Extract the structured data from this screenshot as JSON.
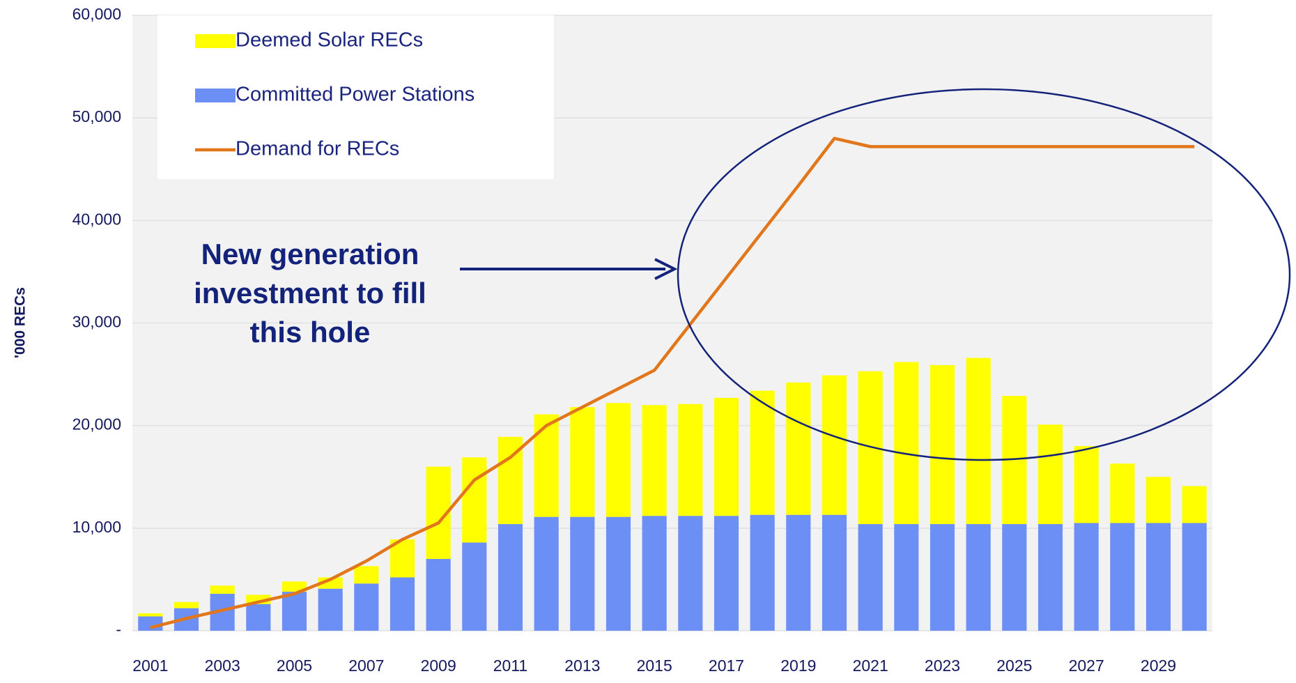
{
  "chart_data": {
    "type": "bar",
    "y_label": "'000 RECs",
    "categories": [
      "2001",
      null,
      "2003",
      null,
      "2005",
      null,
      "2007",
      null,
      "2009",
      null,
      "2011",
      null,
      "2013",
      null,
      "2015",
      null,
      "2017",
      null,
      "2019",
      null,
      "2021",
      null,
      "2023",
      null,
      "2025",
      null,
      "2027",
      null,
      "2029",
      null
    ],
    "series": [
      {
        "name": "Deemed Solar RECs",
        "type": "bar",
        "color": "#ffff00",
        "values": [
          300,
          600,
          800,
          900,
          1000,
          1100,
          1700,
          3700,
          9000,
          8300,
          8500,
          10000,
          10700,
          11100,
          10800,
          10900,
          11500,
          12100,
          12900,
          13600,
          14900,
          15800,
          15500,
          16200,
          12500,
          9700,
          7500,
          5800,
          4500,
          3600
        ]
      },
      {
        "name": "Committed Power Stations",
        "type": "bar",
        "color": "#6b8ff5",
        "values": [
          1400,
          2200,
          3600,
          2600,
          3800,
          4100,
          4600,
          5200,
          7000,
          8600,
          10400,
          11100,
          11100,
          11100,
          11200,
          11200,
          11200,
          11300,
          11300,
          11300,
          10400,
          10400,
          10400,
          10400,
          10400,
          10400,
          10500,
          10500,
          10500,
          10500
        ]
      },
      {
        "name": "Demand for RECs",
        "type": "line",
        "color": "#e2761b",
        "values": [
          300,
          1200,
          2000,
          2800,
          3600,
          5000,
          6800,
          8900,
          10500,
          14700,
          16900,
          20000,
          21800,
          23600,
          25400,
          29900,
          34400,
          38900,
          43400,
          48000,
          47200,
          47200,
          47200,
          47200,
          47200,
          47200,
          47200,
          47200,
          47200,
          47200
        ]
      }
    ],
    "ylim": [
      0,
      60000
    ],
    "yticks": [
      {
        "value": 0,
        "label": "-"
      },
      {
        "value": 10000,
        "label": "10,000"
      },
      {
        "value": 20000,
        "label": "20,000"
      },
      {
        "value": 30000,
        "label": "30,000"
      },
      {
        "value": 40000,
        "label": "40,000"
      },
      {
        "value": 50000,
        "label": "50,000"
      },
      {
        "value": 60000,
        "label": "60,000"
      }
    ],
    "grid": true,
    "annotation": {
      "lines": [
        "New generation",
        "investment to fill",
        "this hole"
      ]
    }
  }
}
